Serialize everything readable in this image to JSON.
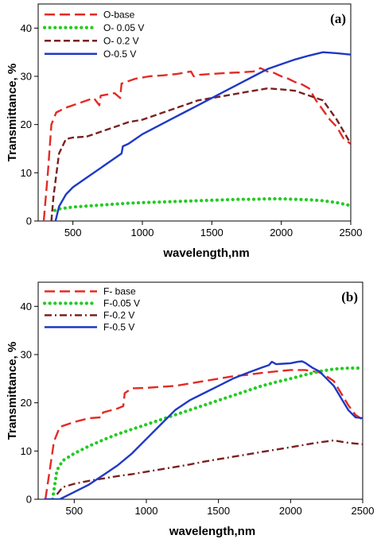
{
  "chart_data": [
    {
      "type": "line",
      "panel_label": "(a)",
      "xlabel": "wavelength,nm",
      "ylabel": "Transmittance, %",
      "xlim": [
        250,
        2500
      ],
      "ylim": [
        0,
        45
      ],
      "xticks": [
        500,
        1000,
        1500,
        2000,
        2500
      ],
      "yticks": [
        0,
        10,
        20,
        30,
        40
      ],
      "legend_position": "top-left",
      "grid": false,
      "series": [
        {
          "name": "O-base",
          "color": "#e32b24",
          "style": "long-dash",
          "points": [
            [
              290,
              0
            ],
            [
              320,
              10
            ],
            [
              345,
              20
            ],
            [
              380,
              22.5
            ],
            [
              450,
              23.5
            ],
            [
              550,
              24.5
            ],
            [
              650,
              25.5
            ],
            [
              690,
              24
            ],
            [
              700,
              26
            ],
            [
              800,
              26.5
            ],
            [
              840,
              25.5
            ],
            [
              850,
              28.5
            ],
            [
              950,
              29.5
            ],
            [
              1050,
              30
            ],
            [
              1150,
              30.2
            ],
            [
              1250,
              30.5
            ],
            [
              1350,
              31
            ],
            [
              1370,
              30
            ],
            [
              1400,
              30.3
            ],
            [
              1500,
              30.5
            ],
            [
              1600,
              30.7
            ],
            [
              1700,
              30.8
            ],
            [
              1800,
              31
            ],
            [
              1850,
              31.7
            ],
            [
              1900,
              31
            ],
            [
              1950,
              30.7
            ],
            [
              2000,
              30
            ],
            [
              2050,
              29.5
            ],
            [
              2100,
              28.8
            ],
            [
              2150,
              28.3
            ],
            [
              2200,
              27.5
            ],
            [
              2250,
              25
            ],
            [
              2300,
              23
            ],
            [
              2350,
              21
            ],
            [
              2400,
              19.5
            ],
            [
              2450,
              17
            ],
            [
              2500,
              16
            ]
          ]
        },
        {
          "name": "O- 0.05 V",
          "color": "#22cc22",
          "style": "dotted",
          "points": [
            [
              370,
              2.2
            ],
            [
              400,
              2.5
            ],
            [
              500,
              2.9
            ],
            [
              600,
              3.1
            ],
            [
              700,
              3.3
            ],
            [
              800,
              3.5
            ],
            [
              900,
              3.7
            ],
            [
              1000,
              3.8
            ],
            [
              1100,
              3.9
            ],
            [
              1200,
              4
            ],
            [
              1300,
              4.1
            ],
            [
              1400,
              4.2
            ],
            [
              1500,
              4.3
            ],
            [
              1600,
              4.4
            ],
            [
              1700,
              4.5
            ],
            [
              1800,
              4.5
            ],
            [
              1900,
              4.6
            ],
            [
              2000,
              4.6
            ],
            [
              2100,
              4.5
            ],
            [
              2200,
              4.4
            ],
            [
              2300,
              4.2
            ],
            [
              2400,
              3.8
            ],
            [
              2500,
              3.2
            ]
          ]
        },
        {
          "name": "O- 0.2 V",
          "color": "#7b2020",
          "style": "dash",
          "points": [
            [
              345,
              0
            ],
            [
              360,
              5
            ],
            [
              400,
              14
            ],
            [
              450,
              17
            ],
            [
              500,
              17.3
            ],
            [
              600,
              17.5
            ],
            [
              700,
              18.5
            ],
            [
              800,
              19.5
            ],
            [
              850,
              20
            ],
            [
              900,
              20.5
            ],
            [
              1000,
              21
            ],
            [
              1100,
              22
            ],
            [
              1200,
              23
            ],
            [
              1300,
              24
            ],
            [
              1400,
              25
            ],
            [
              1500,
              25.5
            ],
            [
              1600,
              26
            ],
            [
              1700,
              26.5
            ],
            [
              1800,
              27
            ],
            [
              1900,
              27.5
            ],
            [
              2000,
              27.3
            ],
            [
              2100,
              27
            ],
            [
              2200,
              26
            ],
            [
              2300,
              25
            ],
            [
              2350,
              23
            ],
            [
              2400,
              21
            ],
            [
              2450,
              18.5
            ],
            [
              2500,
              16
            ]
          ]
        },
        {
          "name": "O-0.5 V",
          "color": "#1f39c4",
          "style": "solid",
          "points": [
            [
              375,
              0
            ],
            [
              400,
              3
            ],
            [
              450,
              5.5
            ],
            [
              500,
              7
            ],
            [
              600,
              9
            ],
            [
              700,
              11
            ],
            [
              800,
              13
            ],
            [
              850,
              14
            ],
            [
              860,
              15.5
            ],
            [
              900,
              16
            ],
            [
              1000,
              18
            ],
            [
              1100,
              19.5
            ],
            [
              1200,
              21
            ],
            [
              1300,
              22.5
            ],
            [
              1400,
              24
            ],
            [
              1500,
              25.5
            ],
            [
              1600,
              27
            ],
            [
              1700,
              28.5
            ],
            [
              1800,
              30
            ],
            [
              1900,
              31.5
            ],
            [
              2000,
              32.5
            ],
            [
              2100,
              33.5
            ],
            [
              2200,
              34.3
            ],
            [
              2300,
              35
            ],
            [
              2400,
              34.8
            ],
            [
              2500,
              34.5
            ]
          ]
        }
      ]
    },
    {
      "type": "line",
      "panel_label": "(b)",
      "xlabel": "wavelength,nm",
      "ylabel": "Transmittance, %",
      "xlim": [
        250,
        2500
      ],
      "ylim": [
        0,
        45
      ],
      "xticks": [
        500,
        1000,
        1500,
        2000,
        2500
      ],
      "yticks": [
        0,
        10,
        20,
        30,
        40
      ],
      "legend_position": "top-left",
      "grid": false,
      "series": [
        {
          "name": "F- base",
          "color": "#e32b24",
          "style": "long-dash",
          "points": [
            [
              300,
              0
            ],
            [
              330,
              6
            ],
            [
              360,
              12
            ],
            [
              400,
              15
            ],
            [
              500,
              16
            ],
            [
              600,
              16.8
            ],
            [
              690,
              17
            ],
            [
              700,
              18
            ],
            [
              800,
              18.8
            ],
            [
              840,
              19.3
            ],
            [
              850,
              22
            ],
            [
              900,
              23
            ],
            [
              1000,
              23.1
            ],
            [
              1100,
              23.3
            ],
            [
              1200,
              23.5
            ],
            [
              1300,
              24
            ],
            [
              1400,
              24.5
            ],
            [
              1500,
              25
            ],
            [
              1600,
              25.5
            ],
            [
              1700,
              25.8
            ],
            [
              1800,
              26.2
            ],
            [
              1900,
              26.5
            ],
            [
              2000,
              26.8
            ],
            [
              2100,
              26.8
            ],
            [
              2200,
              26.3
            ],
            [
              2250,
              25.5
            ],
            [
              2300,
              24.5
            ],
            [
              2350,
              22
            ],
            [
              2400,
              19.5
            ],
            [
              2450,
              17.5
            ],
            [
              2500,
              16.5
            ]
          ]
        },
        {
          "name": "F-0.05 V",
          "color": "#22cc22",
          "style": "dotted",
          "points": [
            [
              350,
              0
            ],
            [
              380,
              6
            ],
            [
              420,
              8
            ],
            [
              500,
              9.5
            ],
            [
              600,
              11
            ],
            [
              700,
              12.3
            ],
            [
              800,
              13.5
            ],
            [
              900,
              14.5
            ],
            [
              1000,
              15.5
            ],
            [
              1100,
              16.5
            ],
            [
              1200,
              17.5
            ],
            [
              1300,
              18.5
            ],
            [
              1400,
              19.5
            ],
            [
              1500,
              20.5
            ],
            [
              1600,
              21.5
            ],
            [
              1700,
              22.5
            ],
            [
              1800,
              23.5
            ],
            [
              1900,
              24.3
            ],
            [
              2000,
              25
            ],
            [
              2100,
              25.8
            ],
            [
              2200,
              26.5
            ],
            [
              2300,
              27
            ],
            [
              2400,
              27.2
            ],
            [
              2500,
              27.2
            ]
          ]
        },
        {
          "name": "F-0.2 V",
          "color": "#7b2020",
          "style": "dash-dot",
          "points": [
            [
              380,
              1
            ],
            [
              420,
              2.5
            ],
            [
              500,
              3.2
            ],
            [
              600,
              3.8
            ],
            [
              700,
              4.3
            ],
            [
              800,
              4.8
            ],
            [
              900,
              5.2
            ],
            [
              1000,
              5.7
            ],
            [
              1100,
              6.2
            ],
            [
              1200,
              6.7
            ],
            [
              1300,
              7.2
            ],
            [
              1400,
              7.8
            ],
            [
              1500,
              8.3
            ],
            [
              1600,
              8.8
            ],
            [
              1700,
              9.3
            ],
            [
              1800,
              9.8
            ],
            [
              1900,
              10.3
            ],
            [
              2000,
              10.8
            ],
            [
              2100,
              11.3
            ],
            [
              2200,
              11.8
            ],
            [
              2300,
              12.2
            ],
            [
              2400,
              11.7
            ],
            [
              2500,
              11.4
            ]
          ]
        },
        {
          "name": "F-0.5 V",
          "color": "#1f39c4",
          "style": "solid",
          "points": [
            [
              290,
              0
            ],
            [
              400,
              0
            ],
            [
              500,
              1.5
            ],
            [
              600,
              3
            ],
            [
              700,
              5
            ],
            [
              800,
              7
            ],
            [
              900,
              9.5
            ],
            [
              1000,
              12.5
            ],
            [
              1100,
              15.5
            ],
            [
              1200,
              18.5
            ],
            [
              1300,
              20.5
            ],
            [
              1400,
              22
            ],
            [
              1500,
              23.5
            ],
            [
              1600,
              25
            ],
            [
              1700,
              26.2
            ],
            [
              1800,
              27.3
            ],
            [
              1850,
              27.8
            ],
            [
              1870,
              28.5
            ],
            [
              1900,
              28
            ],
            [
              1950,
              28.1
            ],
            [
              2000,
              28.2
            ],
            [
              2050,
              28.5
            ],
            [
              2080,
              28.6
            ],
            [
              2100,
              28.3
            ],
            [
              2150,
              27.3
            ],
            [
              2200,
              26.5
            ],
            [
              2250,
              25
            ],
            [
              2300,
              23.5
            ],
            [
              2350,
              21
            ],
            [
              2400,
              18.5
            ],
            [
              2450,
              17
            ],
            [
              2500,
              16.8
            ]
          ]
        }
      ]
    }
  ]
}
